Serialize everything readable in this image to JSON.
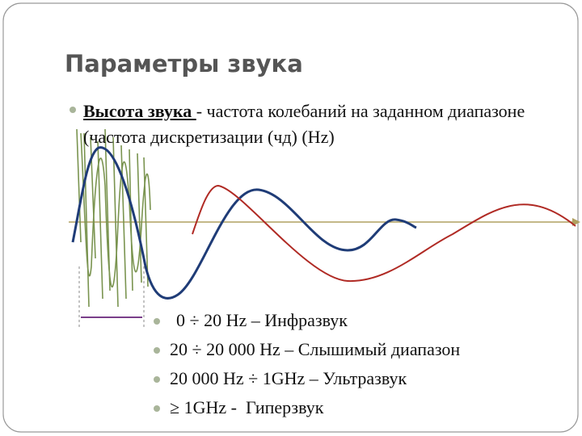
{
  "title": "Параметры звука",
  "main_bullet": {
    "term": "Высота звука ",
    "description": " - частота колебаний на заданном диапазоне (частота дискретизации (чд) (Hz)"
  },
  "items": [
    "0 ÷ 20 Hz – Инфразвук",
    "20 ÷ 20 000 Hz – Слышимый диапазон",
    "20 000 Hz ÷ 1GHz – Ультразвук",
    "≥ 1GHz -  Гиперзвук"
  ]
}
